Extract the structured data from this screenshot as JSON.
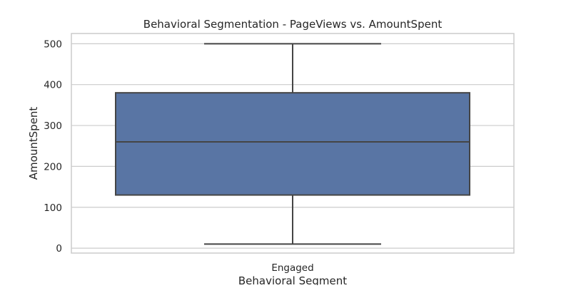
{
  "chart_data": {
    "type": "box",
    "title": "Behavioral Segmentation - PageViews vs. AmountSpent",
    "xlabel": "Behavioral Segment",
    "ylabel": "AmountSpent",
    "ylim": [
      -12,
      525
    ],
    "yticks": [
      0,
      100,
      200,
      300,
      400,
      500
    ],
    "grid": true,
    "categories": [
      "Engaged"
    ],
    "boxes": [
      {
        "category": "Engaged",
        "whisker_low": 10,
        "q1": 130,
        "median": 260,
        "q3": 380,
        "whisker_high": 500
      }
    ],
    "colors": {
      "box_fill": "#5975a4",
      "box_edge": "#454545",
      "grid": "#cccccc",
      "spine": "#cccccc"
    }
  }
}
